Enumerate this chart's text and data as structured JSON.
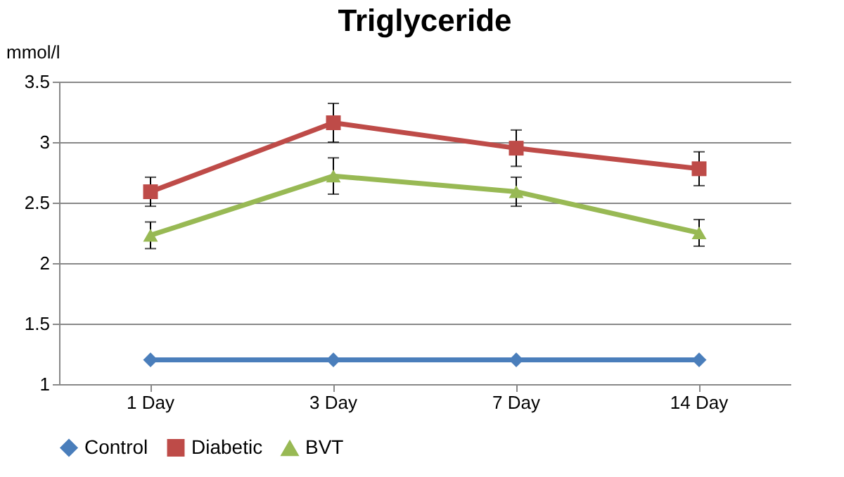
{
  "chart_data": {
    "type": "line",
    "title": "Triglyceride",
    "ylabel": "mmol/l",
    "categories": [
      "1 Day",
      "3 Day",
      "7 Day",
      "14 Day"
    ],
    "series": [
      {
        "name": "Control",
        "color": "#4a7ebb",
        "marker": "diamond",
        "values": [
          1.2,
          1.2,
          1.2,
          1.2
        ]
      },
      {
        "name": "Diabetic",
        "color": "#be4b48",
        "marker": "square",
        "values": [
          2.59,
          3.16,
          2.95,
          2.78
        ],
        "errors": [
          0.12,
          0.16,
          0.15,
          0.14
        ]
      },
      {
        "name": "BVT",
        "color": "#98b954",
        "marker": "triangle",
        "values": [
          2.23,
          2.72,
          2.59,
          2.25
        ],
        "errors": [
          0.11,
          0.15,
          0.12,
          0.11
        ]
      }
    ],
    "ylim": [
      1,
      3.5
    ],
    "yticks": [
      1,
      1.5,
      2,
      2.5,
      3,
      3.5
    ],
    "grid": "y",
    "legend": "bottom",
    "line_style": "solid"
  }
}
